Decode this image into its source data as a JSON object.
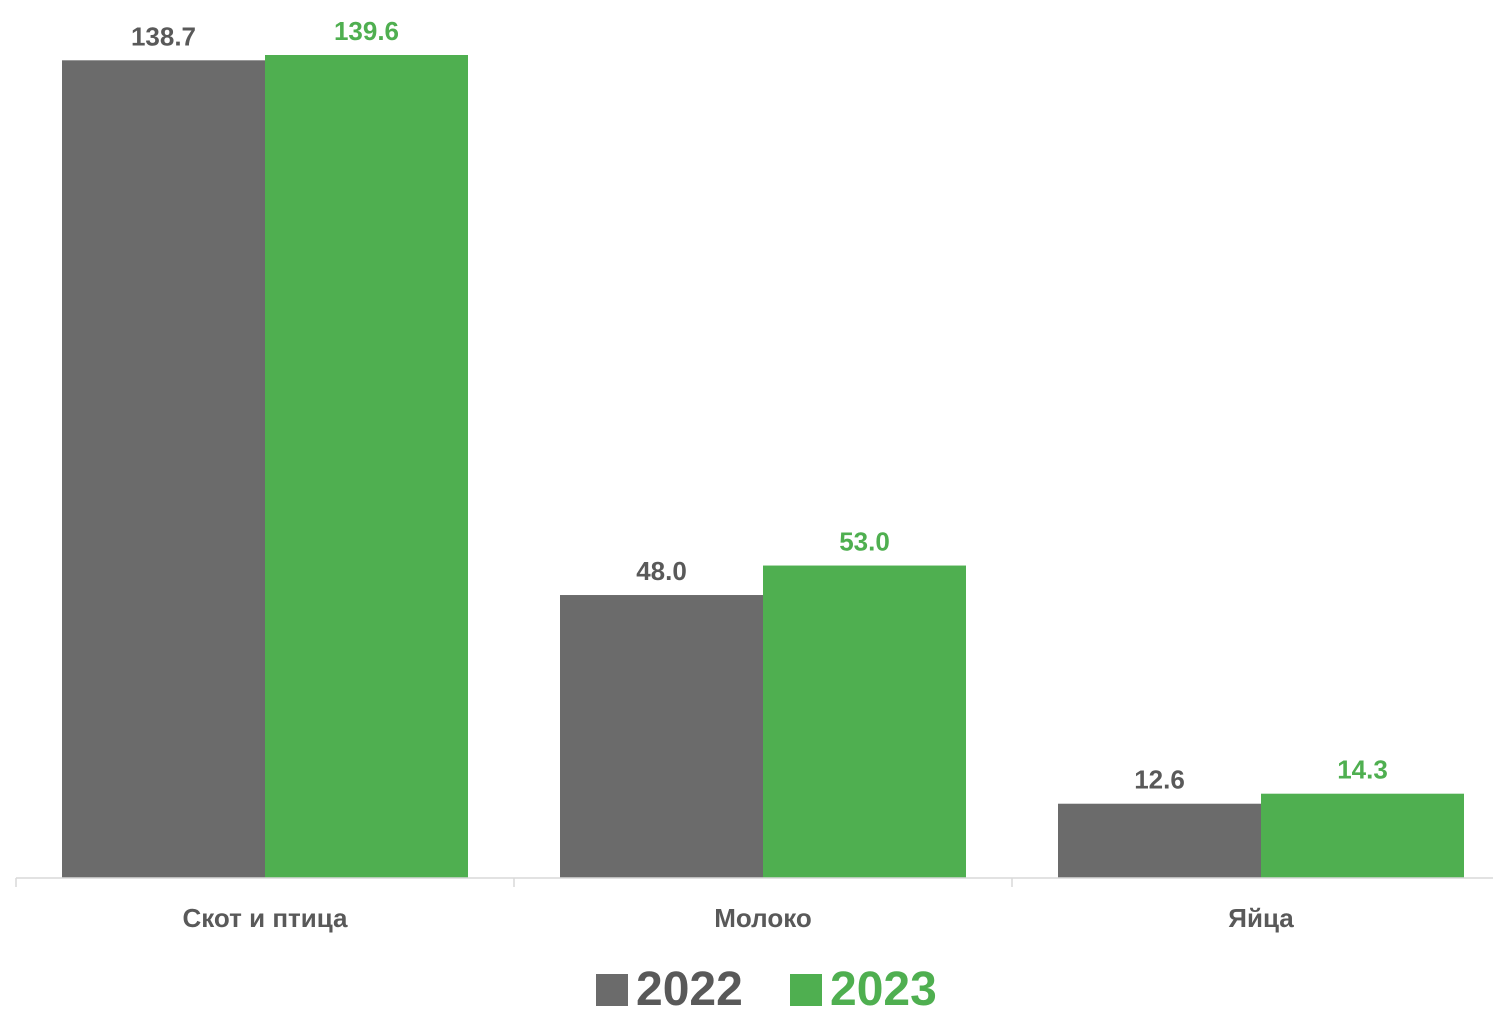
{
  "chart_data": {
    "type": "bar",
    "categories": [
      "Скот и птица",
      "Молоко",
      "Яйца"
    ],
    "series": [
      {
        "name": "2022",
        "values": [
          138.7,
          48.0,
          12.6
        ],
        "color": "#6b6b6b",
        "label_color": "#595959"
      },
      {
        "name": "2023",
        "values": [
          139.6,
          53.0,
          14.3
        ],
        "color": "#4faf50",
        "label_color": "#4faf50"
      }
    ],
    "value_labels": [
      [
        "138.7",
        "48.0",
        "12.6"
      ],
      [
        "139.6",
        "53.0",
        "14.3"
      ]
    ],
    "ylim": [
      0,
      139.6
    ],
    "grid": false,
    "legend": {
      "position": "bottom",
      "items": [
        "2022",
        "2023"
      ]
    },
    "axis_color": "#d9d9d9"
  }
}
